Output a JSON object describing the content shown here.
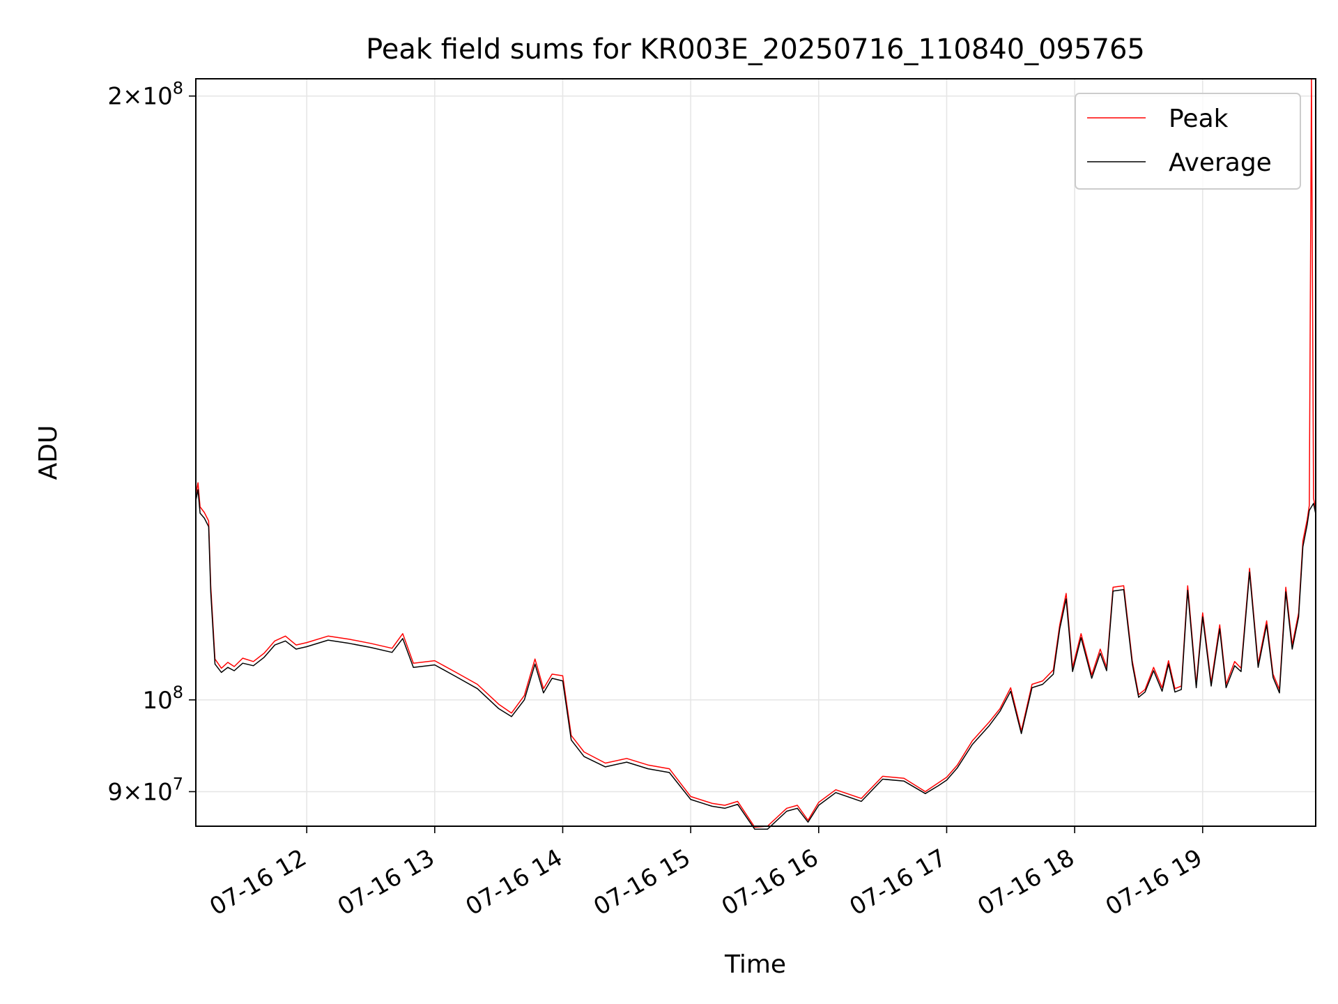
{
  "chart_data": {
    "type": "line",
    "title": "Peak field sums for KR003E_20250716_110840_095765",
    "xlabel": "Time",
    "ylabel": "ADU",
    "yscale": "log",
    "ylim": [
      86500000,
      204000000
    ],
    "xlim": [
      "2025-07-16 11:08",
      "2025-07-16 19:53"
    ],
    "grid": true,
    "legend_position": "upper right",
    "x_tick_labels": [
      "07-16 12",
      "07-16 13",
      "07-16 14",
      "07-16 15",
      "07-16 16",
      "07-16 17",
      "07-16 18",
      "07-16 19"
    ],
    "x_ticks": [
      "2025-07-16 12:00",
      "2025-07-16 13:00",
      "2025-07-16 14:00",
      "2025-07-16 15:00",
      "2025-07-16 16:00",
      "2025-07-16 17:00",
      "2025-07-16 18:00",
      "2025-07-16 19:00"
    ],
    "y_tick_labels": [
      {
        "value": 200000000,
        "mantissa": "2",
        "exponent": "8"
      },
      {
        "value": 100000000,
        "mantissa": "",
        "exponent": "8"
      },
      {
        "value": 90000000,
        "mantissa": "9",
        "exponent": "7"
      }
    ],
    "x": [
      "2025-07-16 11:08",
      "2025-07-16 11:09",
      "2025-07-16 11:10",
      "2025-07-16 11:12",
      "2025-07-16 11:14",
      "2025-07-16 11:15",
      "2025-07-16 11:17",
      "2025-07-16 11:20",
      "2025-07-16 11:23",
      "2025-07-16 11:26",
      "2025-07-16 11:30",
      "2025-07-16 11:35",
      "2025-07-16 11:40",
      "2025-07-16 11:45",
      "2025-07-16 11:50",
      "2025-07-16 11:55",
      "2025-07-16 12:00",
      "2025-07-16 12:10",
      "2025-07-16 12:20",
      "2025-07-16 12:30",
      "2025-07-16 12:40",
      "2025-07-16 12:45",
      "2025-07-16 12:50",
      "2025-07-16 13:00",
      "2025-07-16 13:10",
      "2025-07-16 13:20",
      "2025-07-16 13:30",
      "2025-07-16 13:36",
      "2025-07-16 13:42",
      "2025-07-16 13:47",
      "2025-07-16 13:51",
      "2025-07-16 13:55",
      "2025-07-16 14:00",
      "2025-07-16 14:04",
      "2025-07-16 14:10",
      "2025-07-16 14:20",
      "2025-07-16 14:30",
      "2025-07-16 14:40",
      "2025-07-16 14:50",
      "2025-07-16 15:00",
      "2025-07-16 15:10",
      "2025-07-16 15:16",
      "2025-07-16 15:22",
      "2025-07-16 15:30",
      "2025-07-16 15:36",
      "2025-07-16 15:45",
      "2025-07-16 15:50",
      "2025-07-16 15:55",
      "2025-07-16 16:00",
      "2025-07-16 16:08",
      "2025-07-16 16:20",
      "2025-07-16 16:30",
      "2025-07-16 16:40",
      "2025-07-16 16:50",
      "2025-07-16 16:56",
      "2025-07-16 17:00",
      "2025-07-16 17:05",
      "2025-07-16 17:12",
      "2025-07-16 17:20",
      "2025-07-16 17:25",
      "2025-07-16 17:30",
      "2025-07-16 17:35",
      "2025-07-16 17:40",
      "2025-07-16 17:45",
      "2025-07-16 17:50",
      "2025-07-16 17:53",
      "2025-07-16 17:56",
      "2025-07-16 17:59",
      "2025-07-16 18:03",
      "2025-07-16 18:08",
      "2025-07-16 18:12",
      "2025-07-16 18:15",
      "2025-07-16 18:18",
      "2025-07-16 18:23",
      "2025-07-16 18:27",
      "2025-07-16 18:30",
      "2025-07-16 18:33",
      "2025-07-16 18:37",
      "2025-07-16 18:41",
      "2025-07-16 18:44",
      "2025-07-16 18:47",
      "2025-07-16 18:50",
      "2025-07-16 18:53",
      "2025-07-16 18:57",
      "2025-07-16 19:00",
      "2025-07-16 19:04",
      "2025-07-16 19:08",
      "2025-07-16 19:11",
      "2025-07-16 19:15",
      "2025-07-16 19:18",
      "2025-07-16 19:22",
      "2025-07-16 19:26",
      "2025-07-16 19:30",
      "2025-07-16 19:33",
      "2025-07-16 19:36",
      "2025-07-16 19:39",
      "2025-07-16 19:42",
      "2025-07-16 19:45",
      "2025-07-16 19:47",
      "2025-07-16 19:49",
      "2025-07-16 19:50",
      "2025-07-16 19:51",
      "2025-07-16 19:52",
      "2025-07-16 19:53"
    ],
    "series": [
      {
        "name": "Peak",
        "color": "#ff0000",
        "values": [
          126500000,
          128300000,
          124800000,
          124000000,
          122800000,
          114000000,
          104800000,
          103700000,
          104400000,
          103900000,
          104900000,
          104500000,
          105500000,
          107000000,
          107600000,
          106500000,
          106800000,
          107600000,
          107200000,
          106700000,
          106100000,
          107900000,
          104300000,
          104600000,
          103200000,
          101800000,
          99500000,
          98500000,
          100500000,
          104800000,
          101300000,
          103000000,
          102800000,
          96000000,
          94200000,
          93000000,
          93500000,
          92800000,
          92400000,
          89500000,
          88800000,
          88600000,
          89000000,
          86400000,
          86500000,
          88300000,
          88600000,
          87100000,
          88900000,
          90200000,
          89300000,
          91600000,
          91400000,
          90000000,
          90900000,
          91500000,
          92800000,
          95400000,
          97500000,
          99000000,
          101400000,
          96500000,
          101800000,
          102200000,
          103500000,
          109000000,
          113000000,
          103800000,
          107900000,
          102900000,
          106000000,
          103800000,
          113800000,
          114000000,
          104600000,
          100600000,
          101200000,
          103800000,
          101400000,
          104600000,
          101300000,
          101600000,
          114000000,
          101800000,
          110500000,
          102000000,
          109000000,
          101800000,
          104500000,
          103700000,
          116300000,
          104200000,
          109500000,
          103000000,
          101200000,
          113800000,
          106500000,
          110500000,
          120000000,
          123000000,
          125000000,
          204000000,
          126000000,
          124500000
        ]
      },
      {
        "name": "Average",
        "color": "#000000",
        "values": [
          125700000,
          127300000,
          123900000,
          123200000,
          122000000,
          113200000,
          104200000,
          103200000,
          103800000,
          103400000,
          104300000,
          104000000,
          105000000,
          106500000,
          107000000,
          106000000,
          106300000,
          107100000,
          106700000,
          106200000,
          105600000,
          107300000,
          103800000,
          104100000,
          102700000,
          101300000,
          99000000,
          98100000,
          100000000,
          104200000,
          100800000,
          102500000,
          102200000,
          95500000,
          93700000,
          92600000,
          93100000,
          92400000,
          92000000,
          89200000,
          88500000,
          88300000,
          88700000,
          86200000,
          86200000,
          88000000,
          88300000,
          86900000,
          88600000,
          89900000,
          89000000,
          91300000,
          91100000,
          89800000,
          90600000,
          91200000,
          92500000,
          95000000,
          97100000,
          98700000,
          101000000,
          96200000,
          101400000,
          101800000,
          103000000,
          108500000,
          112300000,
          103300000,
          107400000,
          102500000,
          105500000,
          103400000,
          113300000,
          113500000,
          104200000,
          100300000,
          100900000,
          103400000,
          101000000,
          104200000,
          100900000,
          101200000,
          113400000,
          101400000,
          110000000,
          101600000,
          108500000,
          101400000,
          104000000,
          103300000,
          115800000,
          103800000,
          109000000,
          102600000,
          100800000,
          113200000,
          106000000,
          110000000,
          119200000,
          122300000,
          124300000,
          124800000,
          125300000,
          123800000
        ]
      }
    ]
  }
}
